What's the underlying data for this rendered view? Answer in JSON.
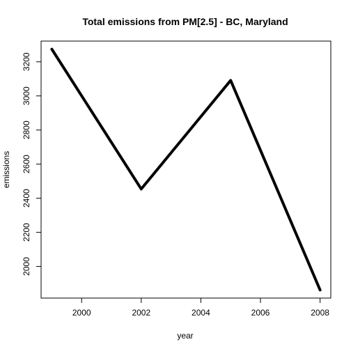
{
  "chart_data": {
    "type": "line",
    "title": "Total emissions from PM[2.5] - BC, Maryland",
    "xlabel": "year",
    "ylabel": "emissions",
    "x": [
      1999,
      2002,
      2005,
      2008
    ],
    "series": [
      {
        "values": [
          3274,
          2454,
          3091,
          1862
        ]
      }
    ],
    "xlim": [
      1998.64,
      2008.36
    ],
    "ylim": [
      1814.5,
      3321.5
    ],
    "xticks": [
      2000,
      2002,
      2004,
      2006,
      2008
    ],
    "yticks": [
      2000,
      2200,
      2400,
      2600,
      2800,
      3000,
      3200
    ],
    "grid": false,
    "line_color": "#000000"
  }
}
